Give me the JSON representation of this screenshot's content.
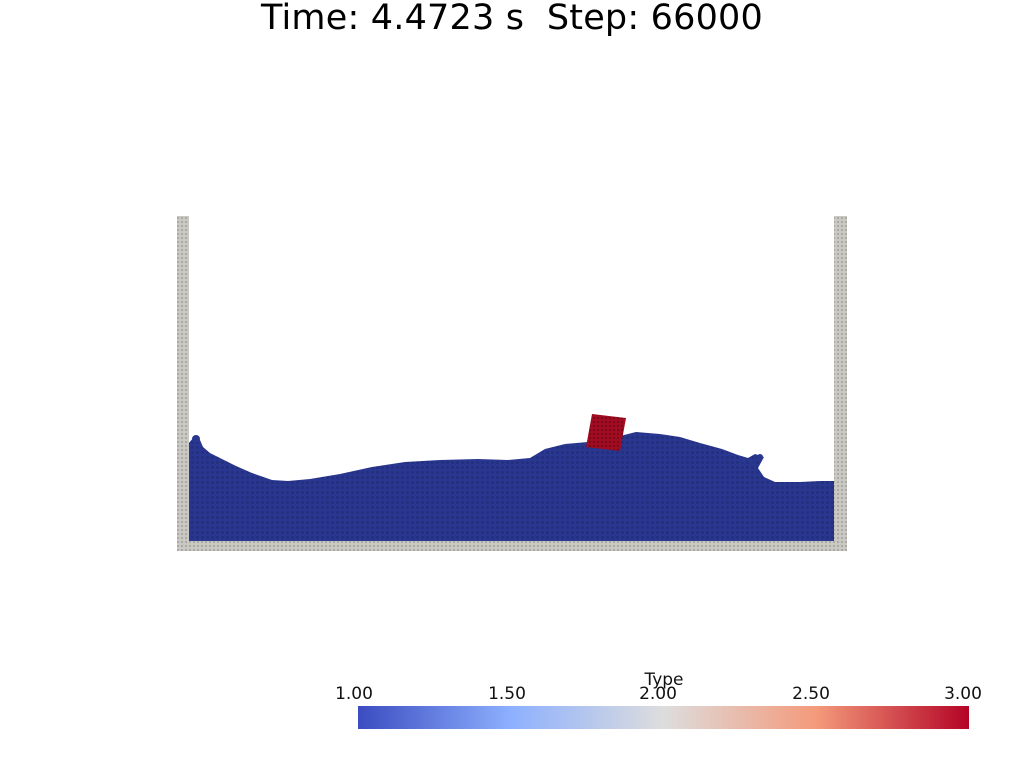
{
  "title": "Time: 4.4723 s  Step: 66000",
  "legend": {
    "title": "Type",
    "ticks": [
      "1.00",
      "1.50",
      "2.00",
      "2.50",
      "3.00"
    ],
    "range": [
      1.0,
      3.0
    ],
    "colormap": [
      "#3b4cc0",
      "#8db0fe",
      "#dddddd",
      "#f49a7b",
      "#b40426"
    ]
  },
  "colors": {
    "fluid": "#2a3791",
    "fluid_shade": "#23307f",
    "boundary": "#cbc9c3",
    "boundary_shade": "#a9a7a1",
    "rigid_body": "#a20c22",
    "rigid_body_shade": "#7f0718"
  }
}
